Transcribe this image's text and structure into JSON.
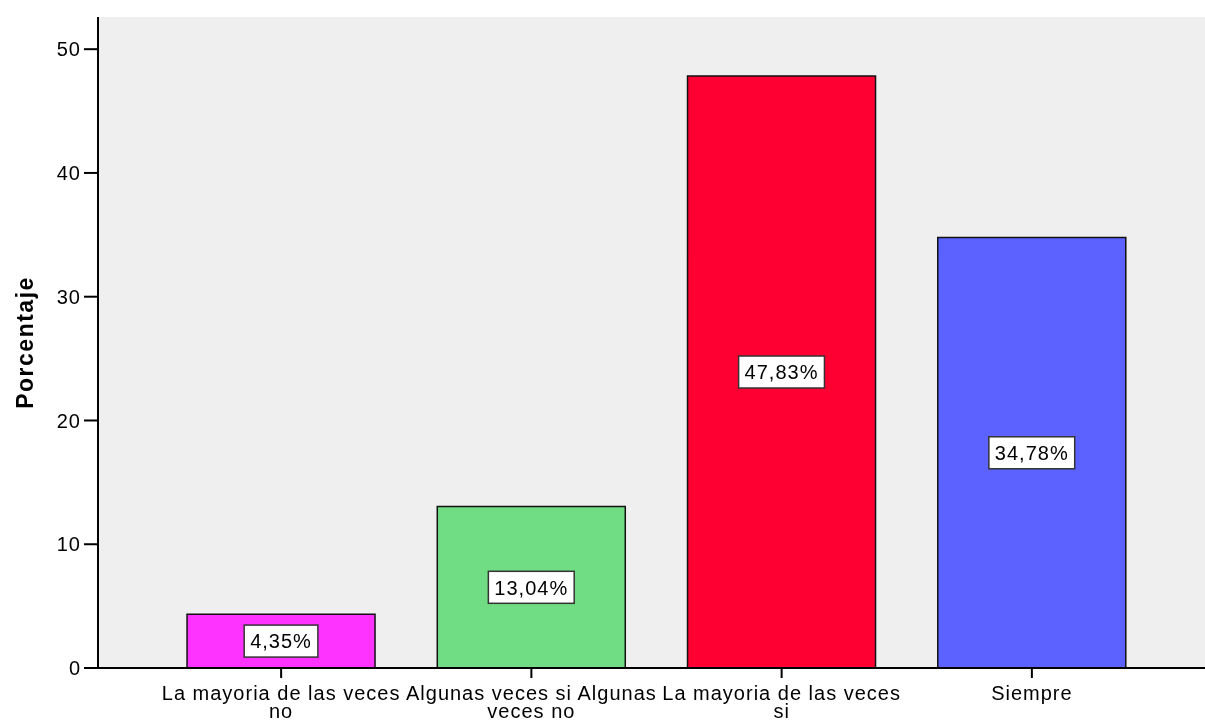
{
  "chart_data": {
    "type": "bar",
    "ylabel": "Porcentaje",
    "categories": [
      "La mayoria de las veces no",
      "Algunas veces si Algunas veces no",
      "La mayoria de las veces si",
      "Siempre"
    ],
    "values": [
      4.35,
      13.04,
      47.83,
      34.78
    ],
    "colors": [
      "#ff33ff",
      "#70dc84",
      "#ff0033",
      "#5c62ff"
    ],
    "value_labels": [
      "4,35%",
      "13,04%",
      "47,83%",
      "34,78%"
    ],
    "ylim": [
      0,
      52.6
    ],
    "yticks": [
      0,
      10,
      20,
      30,
      40,
      50
    ]
  }
}
